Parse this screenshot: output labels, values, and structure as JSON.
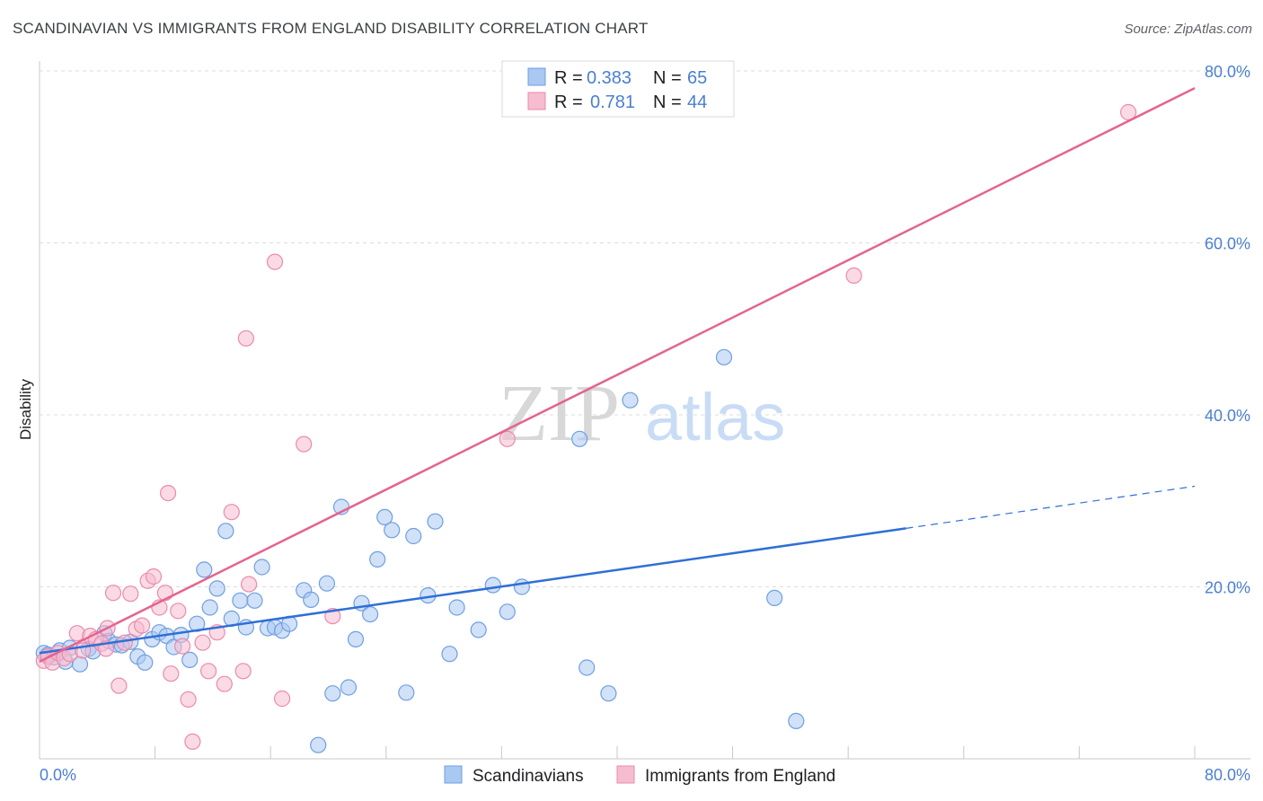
{
  "title": "SCANDINAVIAN VS IMMIGRANTS FROM ENGLAND DISABILITY CORRELATION CHART",
  "source": "Source: ZipAtlas.com",
  "watermark": {
    "zip": "ZIP",
    "atlas": "atlas"
  },
  "colors": {
    "blue_fill": "#a9c8f2",
    "blue_stroke": "#6f9fe0",
    "blue_line": "#2f6fd6",
    "pink_fill": "#f6bcd0",
    "pink_stroke": "#ec8aac",
    "pink_line": "#e4648f",
    "grid": "#dcdcdc",
    "tick_label": "#4a7fd0"
  },
  "legend": {
    "r_label": "R =",
    "n_label": "N =",
    "entries": [
      {
        "r": "0.383",
        "n": "65"
      },
      {
        "r": "0.781",
        "n": "44"
      }
    ]
  },
  "chart_data": {
    "type": "scatter",
    "xlabel": "",
    "ylabel": "Disability",
    "xlim": [
      0,
      80
    ],
    "ylim": [
      0,
      80
    ],
    "x_tick_labels": [
      "0.0%",
      "80.0%"
    ],
    "y_ticks": [
      20,
      40,
      60,
      80
    ],
    "y_tick_labels": [
      "20.0%",
      "40.0%",
      "60.0%",
      "80.0%"
    ],
    "grid": true,
    "legend_position": "top-center",
    "series": [
      {
        "name": "Scandinavians",
        "color": "#a9c8f2",
        "trend": {
          "x": [
            0,
            60
          ],
          "y": [
            12.3,
            26.8
          ],
          "dashed_to": [
            80,
            31.7
          ]
        },
        "points": [
          [
            0.3,
            12.3
          ],
          [
            0.6,
            12.1
          ],
          [
            1.0,
            11.8
          ],
          [
            1.4,
            12.6
          ],
          [
            1.8,
            11.3
          ],
          [
            2.1,
            12.9
          ],
          [
            2.8,
            11.0
          ],
          [
            3.4,
            12.8
          ],
          [
            3.7,
            12.5
          ],
          [
            4.5,
            14.6
          ],
          [
            4.8,
            13.7
          ],
          [
            5.3,
            13.3
          ],
          [
            5.7,
            13.2
          ],
          [
            6.3,
            13.6
          ],
          [
            6.8,
            11.9
          ],
          [
            7.3,
            11.2
          ],
          [
            7.8,
            13.9
          ],
          [
            8.3,
            14.7
          ],
          [
            8.8,
            14.3
          ],
          [
            9.3,
            13.0
          ],
          [
            9.8,
            14.4
          ],
          [
            10.4,
            11.5
          ],
          [
            10.9,
            15.7
          ],
          [
            11.4,
            22.0
          ],
          [
            11.8,
            17.6
          ],
          [
            12.3,
            19.8
          ],
          [
            12.9,
            26.5
          ],
          [
            13.3,
            16.3
          ],
          [
            13.9,
            18.4
          ],
          [
            14.3,
            15.3
          ],
          [
            14.9,
            18.4
          ],
          [
            15.4,
            22.3
          ],
          [
            15.8,
            15.2
          ],
          [
            16.3,
            15.3
          ],
          [
            16.8,
            14.9
          ],
          [
            17.3,
            15.7
          ],
          [
            18.3,
            19.6
          ],
          [
            18.8,
            18.5
          ],
          [
            19.3,
            1.6
          ],
          [
            19.9,
            20.4
          ],
          [
            20.3,
            7.6
          ],
          [
            20.9,
            29.3
          ],
          [
            21.4,
            8.3
          ],
          [
            21.9,
            13.9
          ],
          [
            22.3,
            18.1
          ],
          [
            22.9,
            16.8
          ],
          [
            23.4,
            23.2
          ],
          [
            23.9,
            28.1
          ],
          [
            24.4,
            26.6
          ],
          [
            25.4,
            7.7
          ],
          [
            25.9,
            25.9
          ],
          [
            26.9,
            19.0
          ],
          [
            27.4,
            27.6
          ],
          [
            28.4,
            12.2
          ],
          [
            28.9,
            17.6
          ],
          [
            30.4,
            15.0
          ],
          [
            31.4,
            20.2
          ],
          [
            32.4,
            17.1
          ],
          [
            33.4,
            20.0
          ],
          [
            37.4,
            37.2
          ],
          [
            37.9,
            10.6
          ],
          [
            39.4,
            7.6
          ],
          [
            40.9,
            41.7
          ],
          [
            47.4,
            46.7
          ],
          [
            50.9,
            18.7
          ],
          [
            52.4,
            4.4
          ]
        ]
      },
      {
        "name": "Immigrants from England",
        "color": "#f6bcd0",
        "trend": {
          "x": [
            0,
            80
          ],
          "y": [
            11.3,
            78.0
          ]
        },
        "points": [
          [
            0.3,
            11.4
          ],
          [
            0.6,
            11.9
          ],
          [
            0.9,
            11.2
          ],
          [
            1.3,
            12.3
          ],
          [
            1.7,
            11.7
          ],
          [
            2.1,
            12.2
          ],
          [
            2.6,
            14.6
          ],
          [
            3.0,
            12.6
          ],
          [
            3.5,
            14.3
          ],
          [
            3.9,
            13.9
          ],
          [
            4.3,
            13.4
          ],
          [
            4.7,
            15.2
          ],
          [
            5.1,
            19.3
          ],
          [
            5.5,
            8.5
          ],
          [
            5.9,
            13.5
          ],
          [
            6.3,
            19.2
          ],
          [
            6.7,
            15.1
          ],
          [
            7.1,
            15.5
          ],
          [
            7.5,
            20.7
          ],
          [
            7.9,
            21.2
          ],
          [
            8.3,
            17.6
          ],
          [
            8.7,
            19.3
          ],
          [
            8.9,
            30.9
          ],
          [
            9.1,
            9.9
          ],
          [
            9.6,
            17.2
          ],
          [
            9.9,
            13.1
          ],
          [
            10.3,
            6.9
          ],
          [
            10.6,
            2.0
          ],
          [
            11.3,
            13.5
          ],
          [
            11.7,
            10.2
          ],
          [
            12.3,
            14.7
          ],
          [
            12.8,
            8.7
          ],
          [
            13.3,
            28.7
          ],
          [
            14.1,
            10.2
          ],
          [
            14.3,
            48.9
          ],
          [
            14.5,
            20.3
          ],
          [
            16.3,
            57.8
          ],
          [
            16.8,
            7.0
          ],
          [
            18.3,
            36.6
          ],
          [
            20.3,
            16.6
          ],
          [
            32.4,
            37.2
          ],
          [
            56.4,
            56.2
          ],
          [
            75.4,
            75.2
          ],
          [
            4.6,
            12.8
          ]
        ]
      }
    ]
  },
  "bottom_legend": [
    {
      "label": "Scandinavians"
    },
    {
      "label": "Immigrants from England"
    }
  ]
}
